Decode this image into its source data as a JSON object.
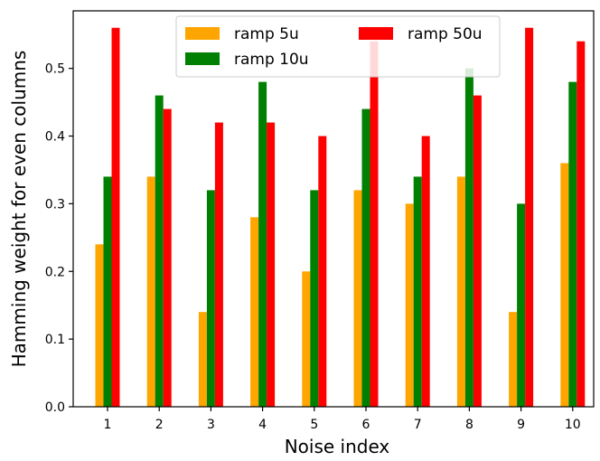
{
  "chart_data": {
    "type": "bar",
    "title": "",
    "xlabel": "Noise index",
    "ylabel": "Hamming weight for even columns",
    "categories": [
      "1",
      "2",
      "3",
      "4",
      "5",
      "6",
      "7",
      "8",
      "9",
      "10"
    ],
    "ylim": [
      0,
      0.585
    ],
    "yticks": [
      "0.0",
      "0.1",
      "0.2",
      "0.3",
      "0.4",
      "0.5"
    ],
    "grid": false,
    "legend_position": "top-center",
    "series": [
      {
        "name": "ramp 5u",
        "color": "#ffa500",
        "values": [
          0.24,
          0.34,
          0.14,
          0.28,
          0.2,
          0.32,
          0.3,
          0.34,
          0.14,
          0.36
        ]
      },
      {
        "name": "ramp 10u",
        "color": "#008000",
        "values": [
          0.34,
          0.46,
          0.32,
          0.48,
          0.32,
          0.44,
          0.34,
          0.5,
          0.3,
          0.48
        ]
      },
      {
        "name": "ramp 50u",
        "color": "#ff0000",
        "values": [
          0.56,
          0.44,
          0.42,
          0.42,
          0.4,
          0.54,
          0.4,
          0.46,
          0.56,
          0.54
        ]
      }
    ]
  }
}
